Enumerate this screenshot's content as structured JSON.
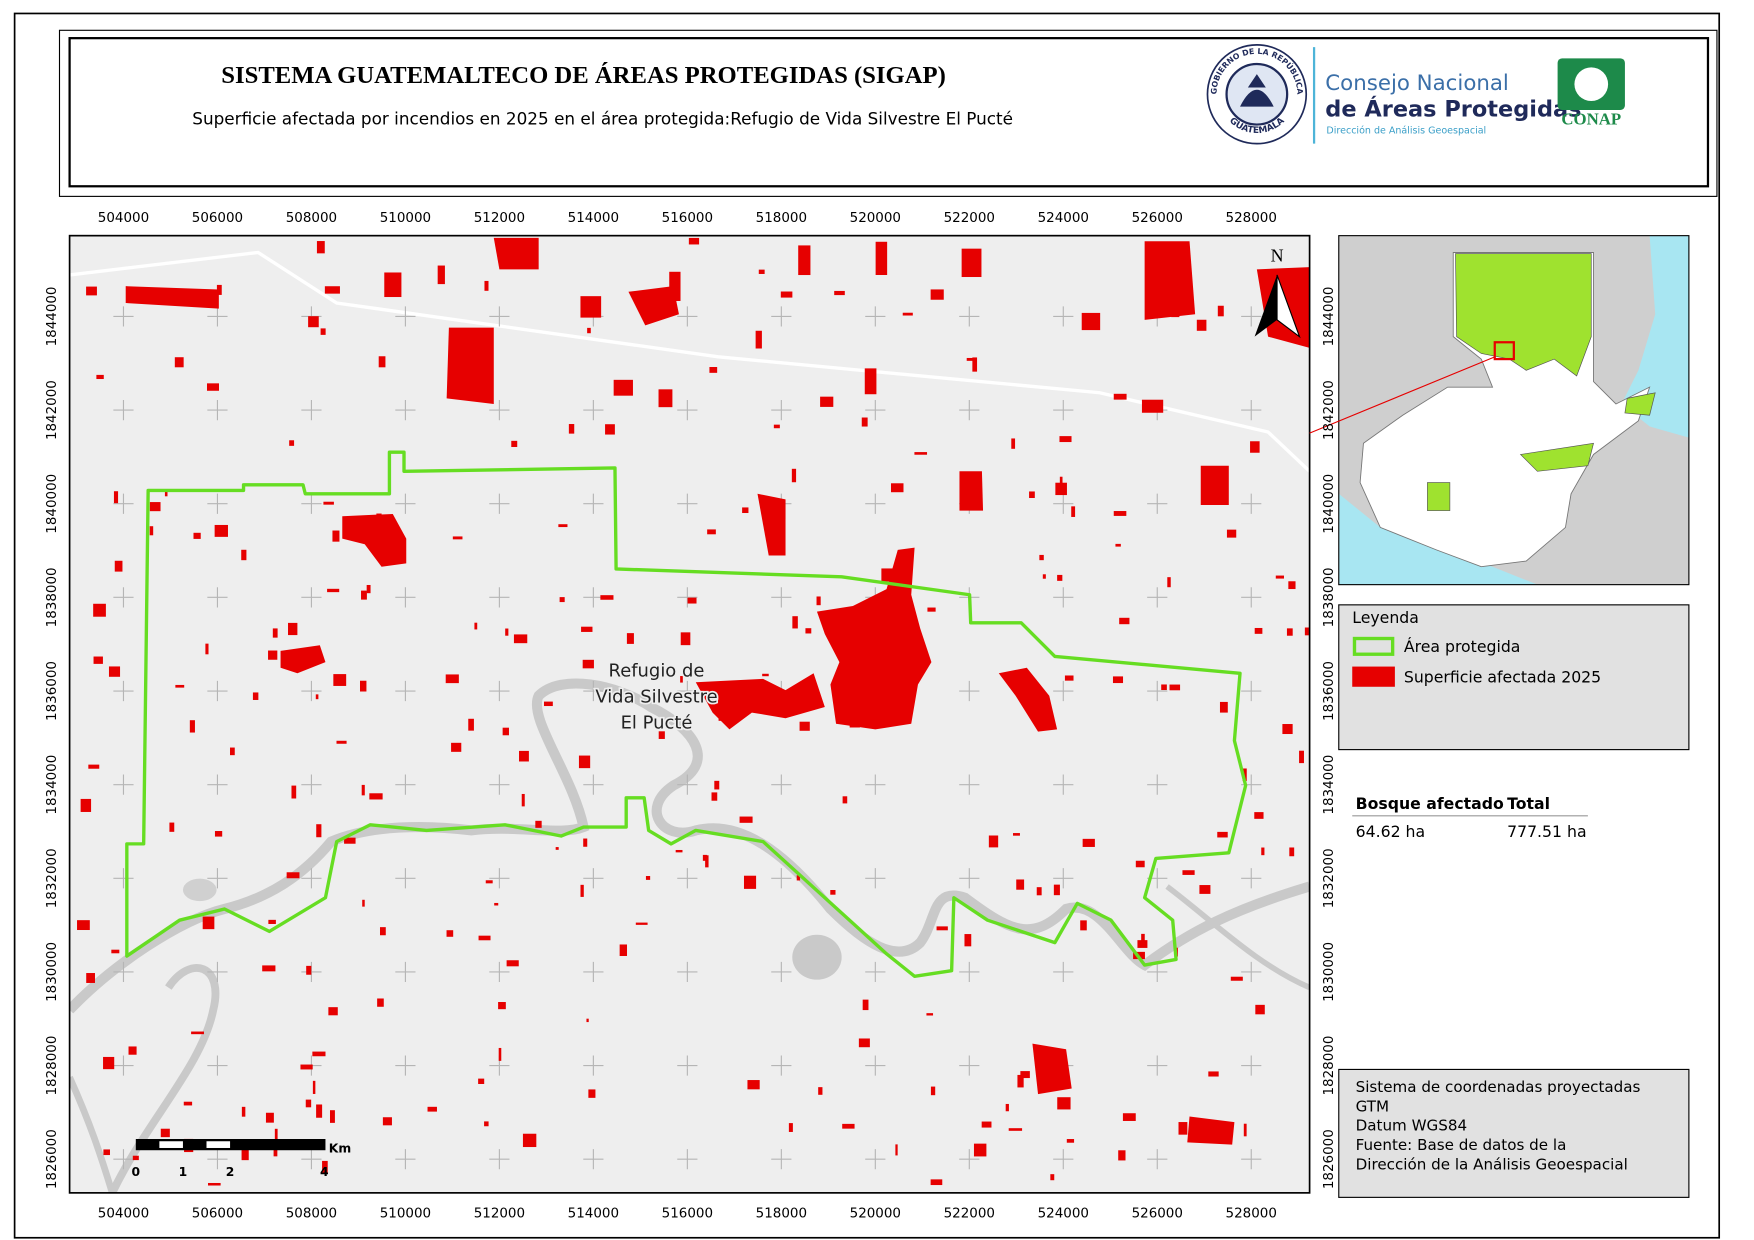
{
  "header": {
    "title": "SISTEMA GUATEMALTECO DE ÁREAS PROTEGIDAS  (SIGAP)",
    "subtitle": "Superficie afectada por incendios en 2025 en el área protegida:Refugio de Vida Silvestre El Pucté"
  },
  "logo": {
    "seal_top": "GOBIERNO DE LA REPÚBLICA",
    "seal_bottom": "GUATEMALA",
    "line1": "Consejo Nacional",
    "line2": "de Áreas Protegidas",
    "line3": "Dirección de Análisis Geoespacial",
    "badge": "CONAP"
  },
  "map": {
    "xticks": [
      504000,
      506000,
      508000,
      510000,
      512000,
      514000,
      516000,
      518000,
      520000,
      522000,
      524000,
      526000,
      528000
    ],
    "yticks": [
      1826000,
      1828000,
      1830000,
      1832000,
      1834000,
      1836000,
      1838000,
      1840000,
      1842000,
      1844000
    ],
    "north": "N",
    "area_label": [
      "Refugio de",
      "Vida Silvestre",
      "El Pucté"
    ],
    "scale_unit": "Km",
    "scale_labels": [
      "0",
      "1",
      "2",
      "4"
    ]
  },
  "legend": {
    "title": "Leyenda",
    "items": [
      {
        "label": "Área protegida",
        "color": "#66dd22"
      },
      {
        "label": "Superficie afectada 2025",
        "color": "#e60000"
      }
    ]
  },
  "table": {
    "headers": [
      "Bosque afectado",
      "Total"
    ],
    "rows": [
      [
        "64.62 ha",
        "777.51 ha"
      ]
    ]
  },
  "metadata": {
    "lines": [
      "Sistema de coordenadas proyectadas",
      "GTM",
      "Datum WGS84",
      "Fuente: Base de datos de la",
      "Dirección de la Análisis Geoespacial"
    ]
  }
}
